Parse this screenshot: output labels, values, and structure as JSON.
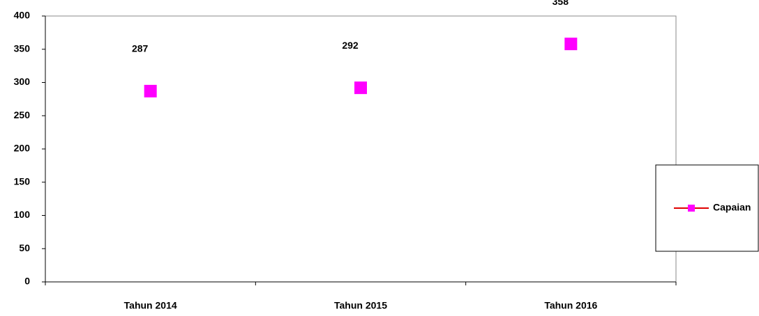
{
  "chart_data": {
    "type": "line",
    "categories": [
      "Tahun 2014",
      "Tahun 2015",
      "Tahun 2016"
    ],
    "series": [
      {
        "name": "Capaian",
        "color": "#ff00ff",
        "line_color": "#e00000",
        "show_line": false,
        "values": [
          287,
          292,
          358
        ]
      }
    ],
    "ylim": [
      0,
      400
    ],
    "yticks": [
      0,
      50,
      100,
      150,
      200,
      250,
      300,
      350,
      400
    ],
    "grid": false,
    "legend": "right"
  }
}
